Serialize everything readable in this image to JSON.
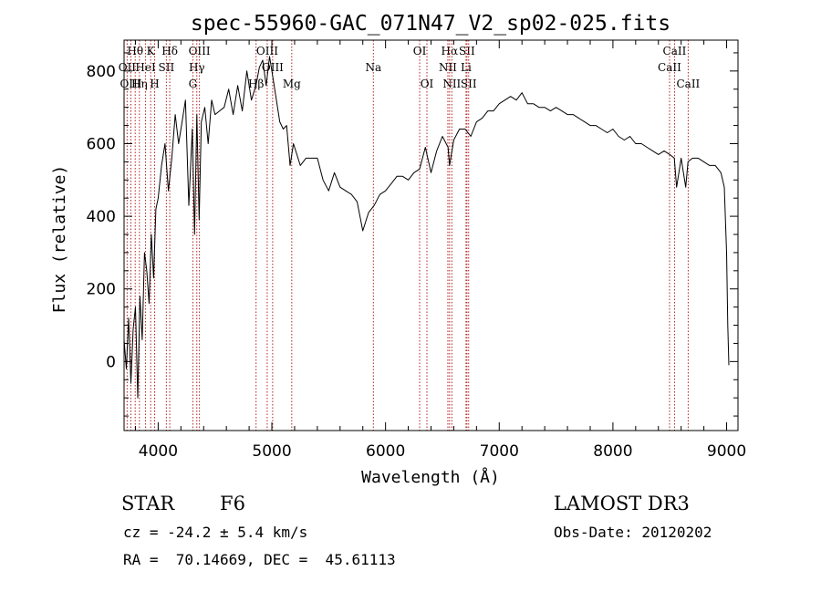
{
  "chart_data": {
    "type": "line",
    "title": "spec-55960-GAC_071N47_V2_sp02-025.fits",
    "xlabel": "Wavelength (Å)",
    "ylabel": "Flux (relative)",
    "xlim": [
      3700,
      9100
    ],
    "ylim": [
      -190,
      885
    ],
    "xticks": [
      4000,
      5000,
      6000,
      7000,
      8000,
      9000
    ],
    "yticks": [
      0,
      200,
      400,
      600,
      800
    ],
    "grid": false,
    "line_color": "#000000",
    "marker_color": "#b22222",
    "spectrum": {
      "x": [
        3700,
        3720,
        3740,
        3760,
        3780,
        3800,
        3820,
        3840,
        3860,
        3880,
        3900,
        3920,
        3940,
        3960,
        3980,
        4000,
        4030,
        4060,
        4090,
        4120,
        4150,
        4180,
        4210,
        4240,
        4270,
        4300,
        4320,
        4340,
        4360,
        4380,
        4410,
        4440,
        4470,
        4500,
        4540,
        4580,
        4620,
        4660,
        4700,
        4740,
        4780,
        4820,
        4860,
        4890,
        4920,
        4950,
        4980,
        5010,
        5040,
        5070,
        5100,
        5130,
        5160,
        5190,
        5250,
        5300,
        5350,
        5400,
        5450,
        5500,
        5550,
        5600,
        5650,
        5700,
        5750,
        5800,
        5850,
        5900,
        5950,
        6000,
        6050,
        6100,
        6150,
        6200,
        6250,
        6300,
        6350,
        6400,
        6450,
        6500,
        6550,
        6563,
        6600,
        6650,
        6700,
        6750,
        6800,
        6850,
        6900,
        6950,
        7000,
        7050,
        7100,
        7150,
        7200,
        7250,
        7300,
        7350,
        7400,
        7450,
        7500,
        7550,
        7600,
        7650,
        7700,
        7750,
        7800,
        7850,
        7900,
        7950,
        8000,
        8050,
        8100,
        8150,
        8200,
        8250,
        8300,
        8350,
        8400,
        8450,
        8500,
        8540,
        8560,
        8600,
        8640,
        8660,
        8700,
        8750,
        8800,
        8850,
        8900,
        8950,
        8980,
        9000,
        9010,
        9020
      ],
      "y": [
        60,
        -20,
        120,
        -60,
        90,
        150,
        -100,
        180,
        60,
        300,
        250,
        160,
        350,
        230,
        420,
        450,
        540,
        600,
        470,
        560,
        680,
        600,
        660,
        720,
        430,
        640,
        350,
        680,
        390,
        660,
        700,
        600,
        720,
        680,
        690,
        700,
        750,
        680,
        760,
        690,
        800,
        720,
        760,
        810,
        830,
        760,
        840,
        780,
        720,
        660,
        640,
        650,
        540,
        600,
        540,
        560,
        560,
        560,
        500,
        470,
        520,
        480,
        470,
        460,
        440,
        360,
        410,
        430,
        460,
        470,
        490,
        510,
        510,
        500,
        520,
        530,
        590,
        520,
        580,
        620,
        590,
        540,
        610,
        640,
        640,
        620,
        660,
        670,
        690,
        690,
        710,
        720,
        730,
        720,
        740,
        710,
        710,
        700,
        700,
        690,
        700,
        690,
        680,
        680,
        670,
        660,
        650,
        650,
        640,
        630,
        640,
        620,
        610,
        620,
        600,
        600,
        590,
        580,
        570,
        580,
        570,
        560,
        480,
        560,
        480,
        550,
        560,
        560,
        550,
        540,
        540,
        520,
        480,
        300,
        100,
        -10
      ]
    },
    "line_markers": [
      {
        "name": "Hθ",
        "wavelength": 3798,
        "row": 0
      },
      {
        "name": "OII",
        "wavelength": 3727,
        "row": 1
      },
      {
        "name": "OIII",
        "wavelength": 3760,
        "row": 2
      },
      {
        "name": "Hη",
        "wavelength": 3835,
        "row": 2
      },
      {
        "name": "HeI",
        "wavelength": 3889,
        "row": 1
      },
      {
        "name": "K",
        "wavelength": 3934,
        "row": 0
      },
      {
        "name": "SII",
        "wavelength": 4072,
        "row": 1
      },
      {
        "name": "H",
        "wavelength": 3969,
        "row": 2
      },
      {
        "name": "Hδ",
        "wavelength": 4102,
        "row": 0
      },
      {
        "name": "OIII",
        "wavelength": 4363,
        "row": 0
      },
      {
        "name": "Hγ",
        "wavelength": 4340,
        "row": 1
      },
      {
        "name": "G",
        "wavelength": 4305,
        "row": 2
      },
      {
        "name": "Hβ",
        "wavelength": 4861,
        "row": 2
      },
      {
        "name": "OIII",
        "wavelength": 4959,
        "row": 0
      },
      {
        "name": "OIII",
        "wavelength": 5007,
        "row": 1
      },
      {
        "name": "Mg",
        "wavelength": 5175,
        "row": 2
      },
      {
        "name": "Na",
        "wavelength": 5893,
        "row": 1
      },
      {
        "name": "OI",
        "wavelength": 6300,
        "row": 0
      },
      {
        "name": "OI",
        "wavelength": 6364,
        "row": 2
      },
      {
        "name": "Hα",
        "wavelength": 6563,
        "row": 0
      },
      {
        "name": "NII",
        "wavelength": 6548,
        "row": 1
      },
      {
        "name": "NII",
        "wavelength": 6583,
        "row": 2
      },
      {
        "name": "SII",
        "wavelength": 6716,
        "row": 0
      },
      {
        "name": "Li",
        "wavelength": 6708,
        "row": 1
      },
      {
        "name": "SII",
        "wavelength": 6731,
        "row": 2
      },
      {
        "name": "CaII",
        "wavelength": 8542,
        "row": 0
      },
      {
        "name": "CaII",
        "wavelength": 8498,
        "row": 1
      },
      {
        "name": "CaII",
        "wavelength": 8662,
        "row": 2
      }
    ]
  },
  "footer": {
    "object_class": "STAR",
    "subclass": "F6",
    "survey": "LAMOST DR3",
    "redshift_text": "cz = -24.2 ± 5.4 km/s",
    "obs_date_text": "Obs-Date: 20120202",
    "coords_text": "RA =  70.14669, DEC =  45.61113"
  }
}
